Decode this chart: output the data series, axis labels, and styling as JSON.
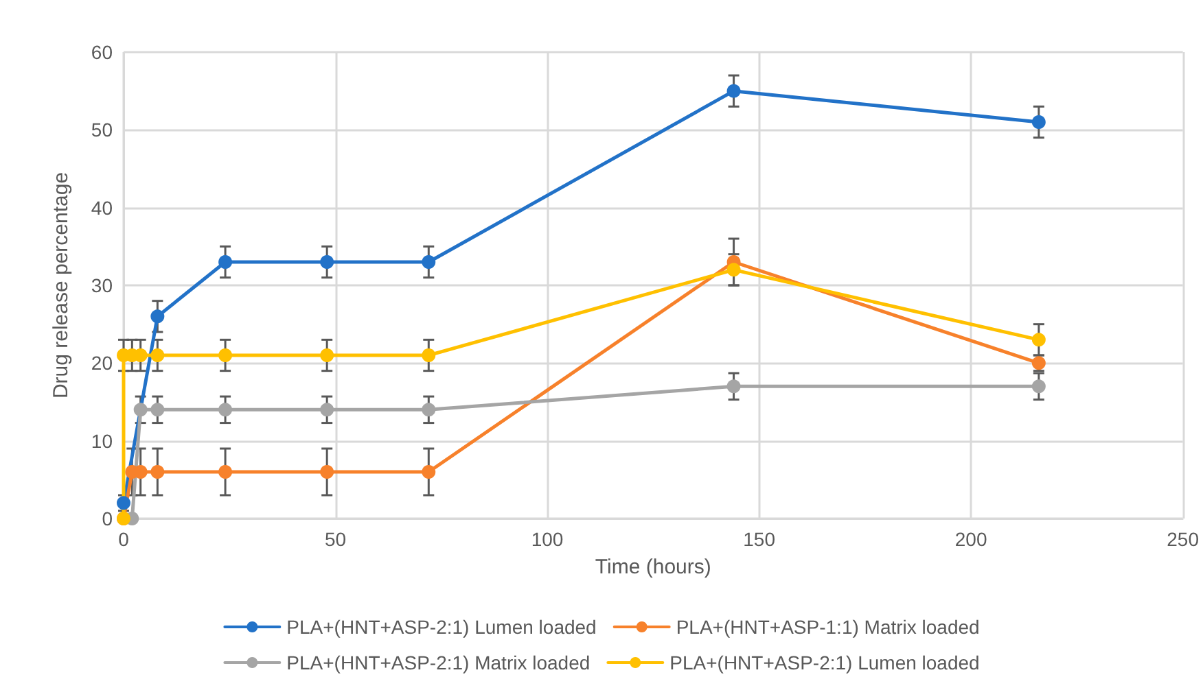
{
  "chart_data": {
    "type": "line",
    "xlabel": "Time (hours)",
    "ylabel": "Drug release percentage",
    "xlim": [
      0,
      250
    ],
    "xticks": [
      0,
      50,
      100,
      150,
      200,
      250
    ],
    "ylim": [
      0,
      60
    ],
    "yticks": [
      0,
      10,
      20,
      30,
      40,
      50,
      60
    ],
    "grid": true,
    "legend": "bottom",
    "marker": "circle",
    "line_style": "solid",
    "series": [
      {
        "name": "PLA+(HNT+ASP-2:1) Lumen loaded",
        "color": "#2272c8",
        "x": [
          0,
          8,
          24,
          48,
          72,
          144,
          216
        ],
        "values": [
          2,
          26,
          33,
          33,
          33,
          55,
          51
        ],
        "errors": [
          1,
          2,
          2,
          2,
          2,
          2,
          2
        ]
      },
      {
        "name": "PLA+(HNT+ASP-1:1) Matrix loaded",
        "color": "#f7812b",
        "x": [
          0,
          2,
          4,
          8,
          24,
          48,
          72,
          144,
          216
        ],
        "values": [
          0,
          6,
          6,
          6,
          6,
          6,
          6,
          33,
          20
        ],
        "errors": [
          null,
          3,
          3,
          3,
          3,
          3,
          3,
          3,
          1
        ]
      },
      {
        "name": "PLA+(HNT+ASP-2:1) Matrix loaded",
        "color": "#a5a5a5",
        "x": [
          2,
          4,
          8,
          24,
          48,
          72,
          144,
          216
        ],
        "values": [
          0,
          14,
          14,
          14,
          14,
          14,
          17,
          17
        ],
        "errors": [
          null,
          1.7,
          1.7,
          1.7,
          1.7,
          1.7,
          1.7,
          1.7
        ]
      },
      {
        "name": "PLA+(HNT+ASP-2:1) Lumen loaded",
        "color": "#ffc000",
        "x": [
          0,
          0,
          2,
          4,
          8,
          24,
          48,
          72,
          144,
          216
        ],
        "values": [
          0,
          21,
          21,
          21,
          21,
          21,
          21,
          21,
          32,
          23
        ],
        "errors": [
          null,
          2,
          2,
          2,
          2,
          2,
          2,
          2,
          2,
          2
        ]
      }
    ]
  }
}
